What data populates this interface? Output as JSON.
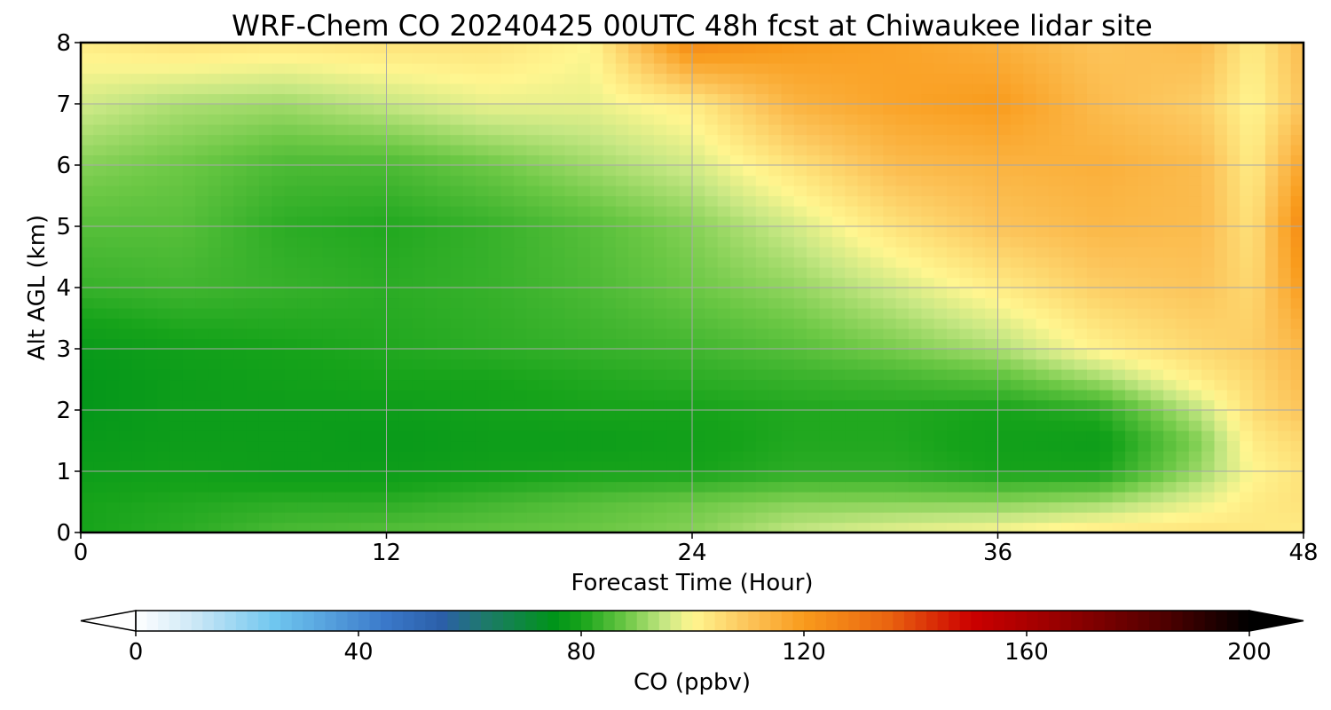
{
  "chart_data": {
    "type": "heatmap",
    "title": "WRF-Chem CO  20240425 00UTC 48h fcst at Chiwaukee lidar site",
    "xlabel": "Forecast Time (Hour)",
    "ylabel": "Alt AGL (km)",
    "xlim": [
      0,
      48
    ],
    "ylim": [
      0,
      8
    ],
    "xticks": [
      "0",
      "12",
      "24",
      "36",
      "48"
    ],
    "yticks": [
      "0",
      "1",
      "2",
      "3",
      "4",
      "5",
      "6",
      "7",
      "8"
    ],
    "grid": true,
    "x": [
      0,
      4,
      8,
      12,
      16,
      20,
      24,
      28,
      32,
      36,
      40,
      44,
      46,
      48
    ],
    "y": [
      0,
      0.5,
      1,
      1.5,
      2,
      2.5,
      3,
      4,
      5,
      6,
      7,
      8
    ],
    "z": [
      [
        80,
        82,
        85,
        86,
        87,
        88,
        90,
        95,
        98,
        100,
        103,
        104,
        103,
        102
      ],
      [
        80,
        81,
        82,
        82,
        84,
        86,
        88,
        90,
        90,
        90,
        92,
        98,
        102,
        104
      ],
      [
        78,
        79,
        78,
        78,
        79,
        80,
        80,
        82,
        82,
        80,
        80,
        92,
        100,
        104
      ],
      [
        77,
        78,
        78,
        77,
        78,
        78,
        79,
        81,
        81,
        79,
        78,
        90,
        102,
        106
      ],
      [
        76,
        78,
        78,
        78,
        79,
        80,
        80,
        81,
        81,
        80,
        82,
        95,
        105,
        110
      ],
      [
        76,
        78,
        79,
        80,
        80,
        81,
        82,
        83,
        84,
        86,
        92,
        102,
        106,
        112
      ],
      [
        77,
        79,
        80,
        81,
        82,
        83,
        84,
        86,
        89,
        93,
        101,
        106,
        108,
        113
      ],
      [
        83,
        84,
        83,
        82,
        83,
        85,
        88,
        91,
        96,
        102,
        108,
        110,
        106,
        120
      ],
      [
        86,
        86,
        82,
        81,
        83,
        86,
        90,
        96,
        104,
        110,
        113,
        112,
        104,
        125
      ],
      [
        90,
        88,
        85,
        85,
        88,
        92,
        96,
        104,
        112,
        114,
        115,
        112,
        102,
        118
      ],
      [
        96,
        93,
        92,
        95,
        98,
        98,
        102,
        114,
        118,
        120,
        112,
        108,
        100,
        110
      ],
      [
        102,
        104,
        103,
        104,
        104,
        100,
        125,
        120,
        118,
        115,
        110,
        112,
        102,
        112
      ]
    ],
    "colorbar": {
      "label": "CO  (ppbv)",
      "min": 0,
      "max": 200,
      "ticks": [
        "0",
        "40",
        "80",
        "120",
        "160",
        "200"
      ],
      "extend": "both"
    },
    "colormap": [
      [
        0,
        "#ffffff"
      ],
      [
        10,
        "#cfe9f7"
      ],
      [
        25,
        "#6fc6ef"
      ],
      [
        45,
        "#3a78c9"
      ],
      [
        55,
        "#2b5fa8"
      ],
      [
        62,
        "#1f7870"
      ],
      [
        75,
        "#00941a"
      ],
      [
        80,
        "#16a31a"
      ],
      [
        88,
        "#6cc845"
      ],
      [
        95,
        "#c6e783"
      ],
      [
        100,
        "#fff690"
      ],
      [
        110,
        "#fcc45a"
      ],
      [
        120,
        "#f99b1c"
      ],
      [
        135,
        "#ea6510"
      ],
      [
        150,
        "#cc0000"
      ],
      [
        165,
        "#9a0000"
      ],
      [
        185,
        "#4e0000"
      ],
      [
        200,
        "#000000"
      ]
    ]
  }
}
